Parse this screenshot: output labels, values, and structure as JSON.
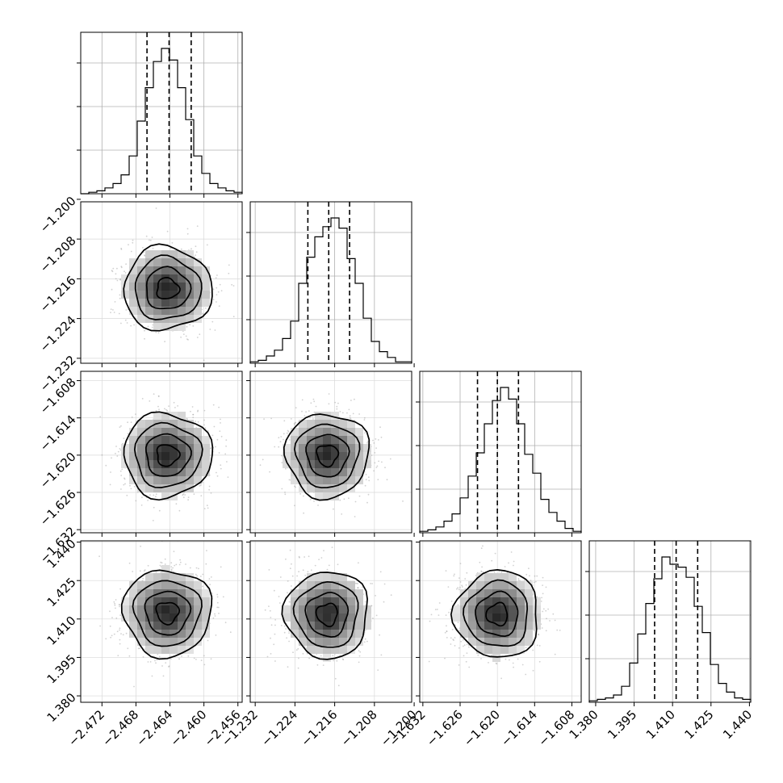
{
  "chart_data": {
    "type": "corner",
    "grid": true,
    "parameters": [
      {
        "range": [
          -2.4745,
          -2.4555
        ],
        "xticks": [
          -2.472,
          -2.468,
          -2.464,
          -2.46,
          -2.456
        ],
        "xtick_labels": [
          "−2.472",
          "−2.468",
          "−2.464",
          "−2.460",
          "−2.456"
        ],
        "quantiles": [
          -2.4667,
          -2.4641,
          -2.4615
        ],
        "hist_counts": [
          0,
          1,
          2,
          4,
          7,
          13,
          26,
          50,
          73,
          91,
          100,
          92,
          73,
          51,
          26,
          14,
          7,
          4,
          2,
          1
        ]
      },
      {
        "range": [
          -1.233,
          -1.2005
        ],
        "yticks": [
          -1.2,
          -1.208,
          -1.216,
          -1.224,
          -1.232
        ],
        "ytick_labels": [
          "−1.200",
          "−1.208",
          "−1.216",
          "−1.224",
          "−1.232"
        ],
        "xticks": [
          -1.232,
          -1.224,
          -1.216,
          -1.208,
          -1.2
        ],
        "xtick_labels": [
          "−1.232",
          "−1.224",
          "−1.216",
          "−1.208",
          "−1.200"
        ],
        "quantiles": [
          -1.2214,
          -1.2172,
          -1.213
        ],
        "hist_counts": [
          1,
          2,
          5,
          9,
          17,
          29,
          55,
          73,
          87,
          94,
          100,
          93,
          72,
          55,
          31,
          15,
          8,
          4,
          1,
          1
        ]
      },
      {
        "range": [
          -1.6325,
          -1.6065
        ],
        "yticks": [
          -1.608,
          -1.614,
          -1.62,
          -1.626,
          -1.632
        ],
        "ytick_labels": [
          "−1.608",
          "−1.614",
          "−1.620",
          "−1.626",
          "−1.632"
        ],
        "xticks": [
          -1.632,
          -1.626,
          -1.62,
          -1.614,
          -1.608
        ],
        "xtick_labels": [
          "−1.632",
          "−1.626",
          "−1.620",
          "−1.614",
          "−1.608"
        ],
        "quantiles": [
          -1.6232,
          -1.62,
          -1.6166
        ],
        "hist_counts": [
          1,
          2,
          4,
          8,
          13,
          24,
          39,
          55,
          75,
          91,
          100,
          92,
          75,
          54,
          41,
          23,
          14,
          8,
          3,
          1
        ]
      },
      {
        "range": [
          1.3775,
          1.4405
        ],
        "yticks": [
          1.44,
          1.425,
          1.41,
          1.395,
          1.38
        ],
        "ytick_labels": [
          "1.440",
          "1.425",
          "1.410",
          "1.395",
          "1.380"
        ],
        "xticks": [
          1.38,
          1.395,
          1.41,
          1.425,
          1.44
        ],
        "xtick_labels": [
          "1.380",
          "1.395",
          "1.410",
          "1.425",
          "1.440"
        ],
        "quantiles": [
          1.403,
          1.4114,
          1.4198
        ],
        "hist_counts": [
          1,
          2,
          3,
          5,
          11,
          27,
          47,
          68,
          85,
          100,
          95,
          93,
          86,
          66,
          48,
          26,
          13,
          7,
          3,
          2
        ]
      }
    ],
    "scatter_panels": [
      {
        "row": 1,
        "col": 0,
        "center": [
          -2.4643,
          -1.218
        ],
        "sigma": [
          0.0026,
          0.0042
        ],
        "rho": 0.0
      },
      {
        "row": 2,
        "col": 0,
        "center": [
          -2.4643,
          -1.62
        ],
        "sigma": [
          0.0026,
          0.0034
        ],
        "rho": 0.0
      },
      {
        "row": 2,
        "col": 1,
        "center": [
          -1.2175,
          -1.62
        ],
        "sigma": [
          0.0042,
          0.0034
        ],
        "rho": 0.0
      },
      {
        "row": 3,
        "col": 0,
        "center": [
          -2.4643,
          1.4125
        ],
        "sigma": [
          0.0026,
          0.0085
        ],
        "rho": 0.0
      },
      {
        "row": 3,
        "col": 1,
        "center": [
          -1.2175,
          1.4118
        ],
        "sigma": [
          0.0042,
          0.0085
        ],
        "rho": 0.0
      },
      {
        "row": 3,
        "col": 2,
        "center": [
          -1.62,
          1.4118
        ],
        "sigma": [
          0.0034,
          0.0085
        ],
        "rho": 0.0
      }
    ],
    "contour_levels_sigma": [
      0.5,
      1.0,
      1.5,
      2.0
    ]
  }
}
